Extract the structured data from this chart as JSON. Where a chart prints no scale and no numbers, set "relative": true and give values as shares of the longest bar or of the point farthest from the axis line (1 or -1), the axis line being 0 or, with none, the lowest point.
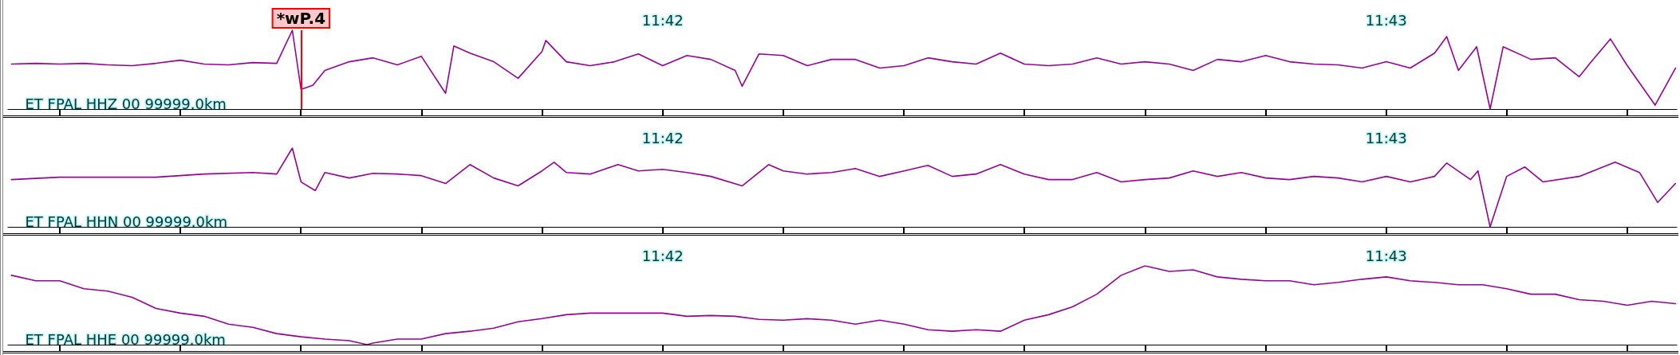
{
  "chart_data": [
    {
      "type": "line",
      "relative": true,
      "marker": "none",
      "line_style": "solid",
      "x": [
        11.685,
        11.68556,
        11.68611,
        11.68667,
        11.68722,
        11.68778,
        11.68833,
        11.68889,
        11.68944,
        11.69,
        11.69056,
        11.69111,
        11.69147,
        11.69167,
        11.69194,
        11.69222,
        11.69278,
        11.69333,
        11.69389,
        11.69444,
        11.695,
        11.69519,
        11.69556,
        11.69611,
        11.69667,
        11.69722,
        11.69731,
        11.69778,
        11.69833,
        11.69889,
        11.69944,
        11.7,
        11.70056,
        11.70111,
        11.70167,
        11.70183,
        11.70222,
        11.70278,
        11.70333,
        11.70389,
        11.70444,
        11.705,
        11.70556,
        11.70611,
        11.70667,
        11.70722,
        11.70778,
        11.70833,
        11.70889,
        11.70944,
        11.71,
        11.71056,
        11.71111,
        11.71167,
        11.71222,
        11.71278,
        11.71333,
        11.71389,
        11.71444,
        11.715,
        11.71556,
        11.71611,
        11.71667,
        11.71722,
        11.71778,
        11.71806,
        11.71833,
        11.71875,
        11.71906,
        11.71936,
        11.72,
        11.72056,
        11.72111,
        11.72139,
        11.72183,
        11.72222,
        11.72286,
        11.72333
      ],
      "series": [
        {
          "color": "#990099",
          "values": [
            0.57,
            0.58,
            0.57,
            0.58,
            0.56,
            0.55,
            0.58,
            0.62,
            0.57,
            0.56,
            0.59,
            0.58,
            1.0,
            0.25,
            0.3,
            0.49,
            0.6,
            0.65,
            0.56,
            0.67,
            0.2,
            0.8,
            0.71,
            0.6,
            0.39,
            0.73,
            0.87,
            0.6,
            0.55,
            0.6,
            0.7,
            0.55,
            0.68,
            0.63,
            0.49,
            0.29,
            0.7,
            0.68,
            0.55,
            0.63,
            0.63,
            0.52,
            0.55,
            0.65,
            0.6,
            0.57,
            0.71,
            0.57,
            0.55,
            0.57,
            0.65,
            0.57,
            0.6,
            0.57,
            0.49,
            0.63,
            0.6,
            0.68,
            0.6,
            0.57,
            0.56,
            0.52,
            0.6,
            0.52,
            0.71,
            0.92,
            0.49,
            0.79,
            0,
            0.79,
            0.63,
            0.65,
            0.41,
            0.6,
            0.89,
            0.55,
            0.05,
            0.52
          ]
        }
      ],
      "xlim": [
        11.68492,
        11.72336
      ],
      "xticks": [
        {
          "value": 11.686111,
          "label": null
        },
        {
          "value": 11.688889,
          "label": null
        },
        {
          "value": 11.691667,
          "label": null
        },
        {
          "value": 11.694444,
          "label": null
        },
        {
          "value": 11.697222,
          "label": null
        },
        {
          "value": 11.7,
          "label": "11:42"
        },
        {
          "value": 11.702778,
          "label": null
        },
        {
          "value": 11.705556,
          "label": null
        },
        {
          "value": 11.708333,
          "label": null
        },
        {
          "value": 11.711111,
          "label": null
        },
        {
          "value": 11.713889,
          "label": null
        },
        {
          "value": 11.716667,
          "label": "11:43"
        },
        {
          "value": 11.719444,
          "label": null
        },
        {
          "value": 11.722222,
          "label": null
        }
      ],
      "ref_lines": [
        {
          "axis": "x",
          "value": 11.69167,
          "label": "*wP.4",
          "color": "#ff0000"
        }
      ],
      "annotations": [
        "ET FPAL HHZ 00 99999.0km"
      ]
    },
    {
      "type": "line",
      "relative": true,
      "marker": "none",
      "line_style": "solid",
      "x": [
        11.685,
        11.68611,
        11.68722,
        11.68833,
        11.68944,
        11.69056,
        11.69111,
        11.69147,
        11.69167,
        11.692,
        11.69222,
        11.69278,
        11.69333,
        11.69389,
        11.69444,
        11.695,
        11.69556,
        11.69611,
        11.69667,
        11.69722,
        11.6975,
        11.69778,
        11.69833,
        11.69897,
        11.69944,
        11.7,
        11.70056,
        11.70111,
        11.70183,
        11.70244,
        11.70278,
        11.70333,
        11.70389,
        11.70444,
        11.705,
        11.70556,
        11.70611,
        11.70667,
        11.70722,
        11.70778,
        11.70833,
        11.70889,
        11.70944,
        11.71,
        11.71056,
        11.71111,
        11.71167,
        11.71222,
        11.71278,
        11.71333,
        11.71389,
        11.71444,
        11.715,
        11.71556,
        11.71611,
        11.71667,
        11.71722,
        11.71778,
        11.71806,
        11.71861,
        11.71878,
        11.71906,
        11.71944,
        11.71986,
        11.72028,
        11.72111,
        11.72194,
        11.7225,
        11.72292,
        11.72333
      ],
      "series": [
        {
          "color": "#990099",
          "values": [
            0.6,
            0.63,
            0.63,
            0.63,
            0.67,
            0.69,
            0.67,
            1.0,
            0.57,
            0.46,
            0.69,
            0.62,
            0.68,
            0.67,
            0.65,
            0.55,
            0.79,
            0.62,
            0.52,
            0.71,
            0.82,
            0.69,
            0.67,
            0.79,
            0.71,
            0.73,
            0.69,
            0.64,
            0.52,
            0.79,
            0.71,
            0.67,
            0.69,
            0.74,
            0.64,
            0.71,
            0.78,
            0.64,
            0.67,
            0.79,
            0.67,
            0.6,
            0.6,
            0.69,
            0.57,
            0.6,
            0.62,
            0.71,
            0.64,
            0.69,
            0.62,
            0.6,
            0.64,
            0.62,
            0.57,
            0.64,
            0.57,
            0.64,
            0.81,
            0.6,
            0.71,
            0,
            0.64,
            0.76,
            0.57,
            0.64,
            0.82,
            0.69,
            0.31,
            0.55
          ]
        }
      ],
      "xlim": [
        11.68492,
        11.72336
      ],
      "xticks": [
        {
          "value": 11.686111,
          "label": null
        },
        {
          "value": 11.688889,
          "label": null
        },
        {
          "value": 11.691667,
          "label": null
        },
        {
          "value": 11.694444,
          "label": null
        },
        {
          "value": 11.697222,
          "label": null
        },
        {
          "value": 11.7,
          "label": "11:42"
        },
        {
          "value": 11.702778,
          "label": null
        },
        {
          "value": 11.705556,
          "label": null
        },
        {
          "value": 11.708333,
          "label": null
        },
        {
          "value": 11.711111,
          "label": null
        },
        {
          "value": 11.713889,
          "label": null
        },
        {
          "value": 11.716667,
          "label": "11:43"
        },
        {
          "value": 11.719444,
          "label": null
        },
        {
          "value": 11.722222,
          "label": null
        }
      ],
      "annotations": [
        "ET FPAL HHN 00 99999.0km"
      ]
    },
    {
      "type": "line",
      "relative": true,
      "marker": "none",
      "line_style": "solid",
      "x": [
        11.685,
        11.68556,
        11.68611,
        11.68667,
        11.68722,
        11.68778,
        11.68833,
        11.68889,
        11.68944,
        11.69,
        11.69056,
        11.69111,
        11.69167,
        11.69222,
        11.69278,
        11.69319,
        11.69333,
        11.69389,
        11.69444,
        11.695,
        11.69556,
        11.69611,
        11.69667,
        11.69722,
        11.69778,
        11.69833,
        11.69889,
        11.69944,
        11.7,
        11.70056,
        11.70111,
        11.70167,
        11.70222,
        11.70278,
        11.70333,
        11.70389,
        11.70444,
        11.705,
        11.70556,
        11.70611,
        11.70667,
        11.70722,
        11.70778,
        11.70833,
        11.70889,
        11.70944,
        11.71,
        11.71056,
        11.71111,
        11.71167,
        11.71222,
        11.71278,
        11.71333,
        11.71389,
        11.71444,
        11.715,
        11.71556,
        11.71611,
        11.71667,
        11.71722,
        11.71778,
        11.71833,
        11.71889,
        11.71944,
        11.72,
        11.72056,
        11.72111,
        11.72167,
        11.72222,
        11.72278,
        11.72333
      ],
      "series": [
        {
          "color": "#990099",
          "values": [
            0.88,
            0.81,
            0.81,
            0.71,
            0.68,
            0.6,
            0.46,
            0.4,
            0.36,
            0.26,
            0.22,
            0.14,
            0.1,
            0.07,
            0.05,
            0,
            0.02,
            0.07,
            0.07,
            0.14,
            0.17,
            0.21,
            0.29,
            0.33,
            0.38,
            0.4,
            0.4,
            0.4,
            0.4,
            0.36,
            0.37,
            0.36,
            0.32,
            0.31,
            0.33,
            0.31,
            0.26,
            0.31,
            0.26,
            0.19,
            0.17,
            0.19,
            0.17,
            0.31,
            0.38,
            0.48,
            0.64,
            0.88,
            1.0,
            0.93,
            0.95,
            0.86,
            0.83,
            0.81,
            0.81,
            0.76,
            0.79,
            0.83,
            0.86,
            0.81,
            0.79,
            0.76,
            0.76,
            0.71,
            0.64,
            0.64,
            0.57,
            0.55,
            0.5,
            0.55,
            0.52
          ]
        }
      ],
      "xlim": [
        11.68492,
        11.72336
      ],
      "xticks": [
        {
          "value": 11.686111,
          "label": null
        },
        {
          "value": 11.688889,
          "label": null
        },
        {
          "value": 11.691667,
          "label": null
        },
        {
          "value": 11.694444,
          "label": null
        },
        {
          "value": 11.697222,
          "label": null
        },
        {
          "value": 11.7,
          "label": "11:42"
        },
        {
          "value": 11.702778,
          "label": null
        },
        {
          "value": 11.705556,
          "label": null
        },
        {
          "value": 11.708333,
          "label": null
        },
        {
          "value": 11.711111,
          "label": null
        },
        {
          "value": 11.713889,
          "label": null
        },
        {
          "value": 11.716667,
          "label": "11:43"
        },
        {
          "value": 11.719444,
          "label": null
        },
        {
          "value": 11.722222,
          "label": null
        }
      ],
      "annotations": [
        "ET FPAL HHE 00 99999.0km"
      ]
    }
  ]
}
